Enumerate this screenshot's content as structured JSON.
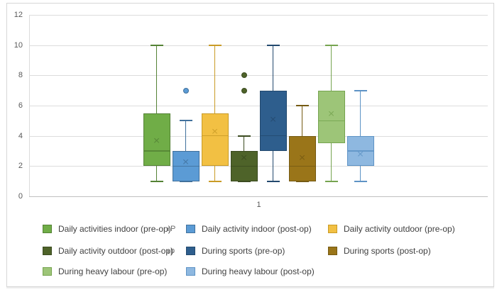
{
  "chart_data": {
    "type": "boxplot",
    "title": "",
    "x_category": "1",
    "y_ticks": [
      0,
      2,
      4,
      6,
      8,
      10,
      12
    ],
    "ylim": [
      0,
      12
    ],
    "grid": true,
    "legend_position": "bottom",
    "series": [
      {
        "name": "Daily activities indoor (pre-op)",
        "fill": "#70AD47",
        "stroke": "#548235",
        "min": 1,
        "q1": 2,
        "median": 3,
        "q3": 5.5,
        "max": 10,
        "mean": 3.6,
        "outliers": []
      },
      {
        "name": "Daily activity indoor (post-op)",
        "fill": "#5B9BD5",
        "stroke": "#41719C",
        "min": 1,
        "q1": 1,
        "median": 2,
        "q3": 3,
        "max": 5,
        "mean": 2.2,
        "outliers": [
          7
        ]
      },
      {
        "name": "Daily activity outdoor (pre-op)",
        "fill": "#F2C043",
        "stroke": "#C99B26",
        "min": 1,
        "q1": 2,
        "median": 4,
        "q3": 5.5,
        "max": 10,
        "mean": 4.2,
        "outliers": []
      },
      {
        "name": "Daily activity outdoor (post-op)",
        "fill": "#4E6329",
        "stroke": "#3B4B20",
        "min": 1,
        "q1": 1,
        "median": 2,
        "q3": 3,
        "max": 4,
        "mean": 2.5,
        "outliers": [
          7,
          8
        ]
      },
      {
        "name": "During sports (pre-op)",
        "fill": "#2E5E8D",
        "stroke": "#23496E",
        "min": 1,
        "q1": 3,
        "median": 4,
        "q3": 7,
        "max": 10,
        "mean": 5.0,
        "outliers": []
      },
      {
        "name": "During sports (post-op)",
        "fill": "#9A7519",
        "stroke": "#755A13",
        "min": 1,
        "q1": 1,
        "median": 2,
        "q3": 4,
        "max": 6,
        "mean": 2.5,
        "outliers": []
      },
      {
        "name": "During heavy labour (pre-op)",
        "fill": "#9DC578",
        "stroke": "#76A450",
        "min": 1,
        "q1": 3.5,
        "median": 5,
        "q3": 7,
        "max": 10,
        "mean": 5.4,
        "outliers": []
      },
      {
        "name": "During heavy labour (post-op)",
        "fill": "#8EB8E0",
        "stroke": "#5E93C5",
        "min": 1,
        "q1": 2,
        "median": 3,
        "q3": 4,
        "max": 7,
        "mean": 2.7,
        "outliers": []
      }
    ]
  },
  "legend": {
    "stray_marks": [
      "P",
      "p"
    ]
  }
}
